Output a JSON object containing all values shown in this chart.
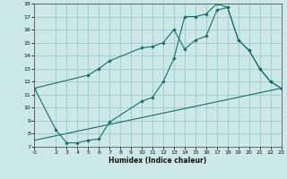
{
  "background_color": "#cce8e8",
  "grid_color": "#a0c8c8",
  "line_color": "#1a6e6a",
  "xlabel": "Humidex (Indice chaleur)",
  "xlim": [
    0,
    23
  ],
  "ylim": [
    7,
    18
  ],
  "xticks": [
    0,
    2,
    3,
    4,
    5,
    6,
    7,
    8,
    9,
    10,
    11,
    12,
    13,
    14,
    15,
    16,
    17,
    18,
    19,
    20,
    21,
    22,
    23
  ],
  "yticks": [
    7,
    8,
    9,
    10,
    11,
    12,
    13,
    14,
    15,
    16,
    17,
    18
  ],
  "curve1_x": [
    0,
    2,
    3,
    4,
    5,
    6,
    7,
    10,
    11,
    12,
    13,
    14,
    15,
    16,
    17,
    18,
    19,
    20,
    21,
    22,
    23
  ],
  "curve1_y": [
    11.5,
    8.3,
    7.3,
    7.3,
    7.5,
    7.6,
    8.9,
    10.5,
    10.8,
    12.0,
    13.8,
    17.0,
    17.0,
    17.2,
    18.0,
    17.7,
    15.2,
    14.4,
    13.0,
    12.0,
    11.5
  ],
  "curve2_x": [
    0,
    5,
    6,
    7,
    10,
    11,
    12,
    13,
    14,
    15,
    16,
    17,
    18,
    19,
    20,
    21,
    22,
    23
  ],
  "curve2_y": [
    11.5,
    12.5,
    13.0,
    13.6,
    14.6,
    14.7,
    15.0,
    16.0,
    14.5,
    15.2,
    15.5,
    17.5,
    17.7,
    15.2,
    14.4,
    13.0,
    12.0,
    11.5
  ],
  "curve3_x": [
    0,
    23
  ],
  "curve3_y": [
    7.5,
    11.5
  ]
}
